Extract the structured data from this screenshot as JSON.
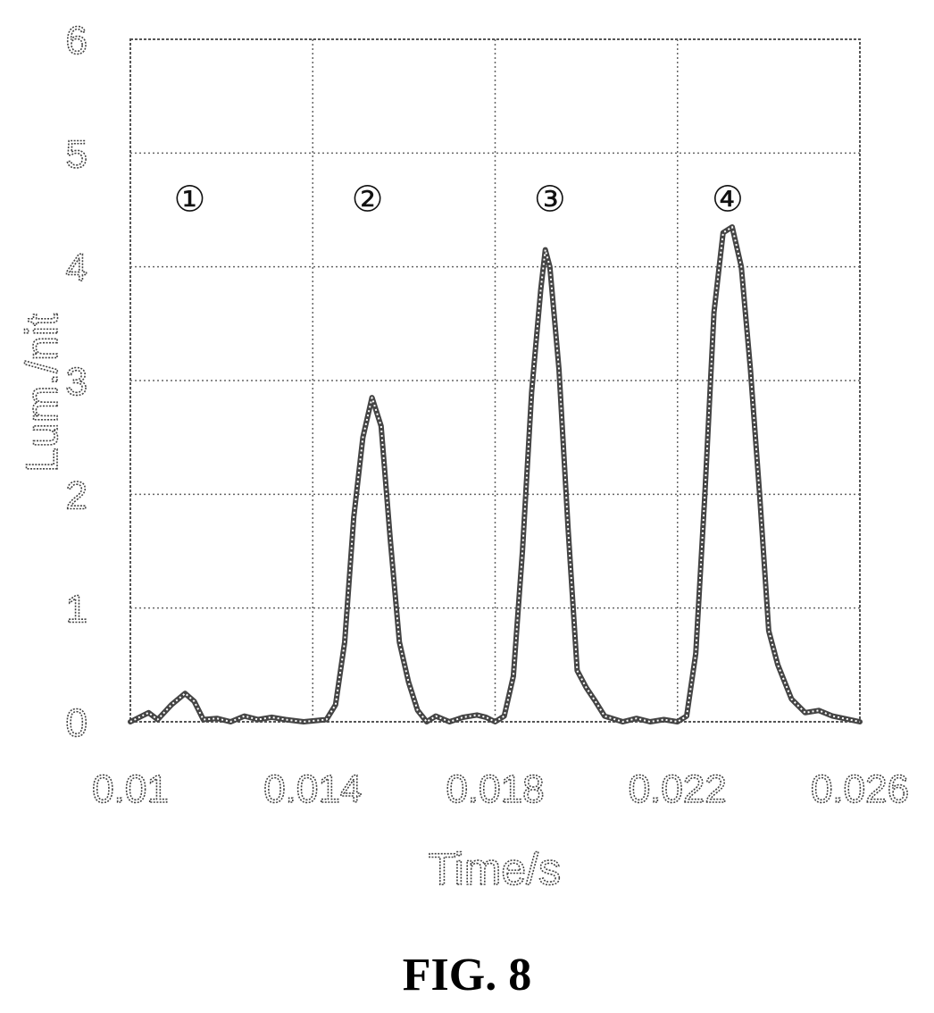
{
  "figure": {
    "caption": "FIG. 8"
  },
  "chart_data": {
    "type": "line",
    "title": "",
    "xlabel": "Time/s",
    "ylabel": "Lum./nit",
    "xlim": [
      0.01,
      0.026
    ],
    "ylim": [
      0,
      6
    ],
    "xticks": [
      "0.01",
      "0.014",
      "0.018",
      "0.022",
      "0.026"
    ],
    "yticks": [
      "0",
      "1",
      "2",
      "3",
      "4",
      "5",
      "6"
    ],
    "grid": true,
    "series": [
      {
        "points": [
          [
            0.01,
            0.0
          ],
          [
            0.0104,
            0.08
          ],
          [
            0.0106,
            0.02
          ],
          [
            0.0109,
            0.15
          ],
          [
            0.0112,
            0.25
          ],
          [
            0.0114,
            0.18
          ],
          [
            0.0116,
            0.02
          ],
          [
            0.0119,
            0.03
          ],
          [
            0.0122,
            0.0
          ],
          [
            0.0125,
            0.05
          ],
          [
            0.0128,
            0.02
          ],
          [
            0.0131,
            0.04
          ],
          [
            0.0134,
            0.02
          ],
          [
            0.0138,
            0.0
          ],
          [
            0.0143,
            0.02
          ],
          [
            0.0145,
            0.15
          ],
          [
            0.0147,
            0.7
          ],
          [
            0.0149,
            1.8
          ],
          [
            0.0151,
            2.5
          ],
          [
            0.0153,
            2.85
          ],
          [
            0.0155,
            2.6
          ],
          [
            0.0157,
            1.6
          ],
          [
            0.0159,
            0.7
          ],
          [
            0.0161,
            0.35
          ],
          [
            0.0163,
            0.1
          ],
          [
            0.0165,
            0.0
          ],
          [
            0.0167,
            0.05
          ],
          [
            0.017,
            0.0
          ],
          [
            0.0173,
            0.04
          ],
          [
            0.0176,
            0.06
          ],
          [
            0.0178,
            0.04
          ],
          [
            0.018,
            0.0
          ],
          [
            0.0182,
            0.05
          ],
          [
            0.0184,
            0.4
          ],
          [
            0.0186,
            1.5
          ],
          [
            0.0188,
            2.9
          ],
          [
            0.019,
            3.8
          ],
          [
            0.0191,
            4.15
          ],
          [
            0.0192,
            4.0
          ],
          [
            0.0194,
            3.1
          ],
          [
            0.0196,
            1.7
          ],
          [
            0.0198,
            0.45
          ],
          [
            0.02,
            0.3
          ],
          [
            0.0202,
            0.18
          ],
          [
            0.0204,
            0.05
          ],
          [
            0.0208,
            0.0
          ],
          [
            0.0211,
            0.03
          ],
          [
            0.0214,
            0.0
          ],
          [
            0.0217,
            0.02
          ],
          [
            0.022,
            0.0
          ],
          [
            0.0222,
            0.05
          ],
          [
            0.0224,
            0.6
          ],
          [
            0.0226,
            2.0
          ],
          [
            0.0228,
            3.6
          ],
          [
            0.023,
            4.3
          ],
          [
            0.0232,
            4.35
          ],
          [
            0.0234,
            4.0
          ],
          [
            0.0236,
            3.1
          ],
          [
            0.0238,
            2.0
          ],
          [
            0.024,
            0.8
          ],
          [
            0.0242,
            0.5
          ],
          [
            0.0245,
            0.2
          ],
          [
            0.0248,
            0.08
          ],
          [
            0.0251,
            0.1
          ],
          [
            0.0254,
            0.05
          ],
          [
            0.026,
            0.0
          ]
        ]
      }
    ],
    "annotations": [
      {
        "text": "①",
        "x": 0.0113,
        "y": 4.6
      },
      {
        "text": "②",
        "x": 0.0152,
        "y": 4.6
      },
      {
        "text": "③",
        "x": 0.0192,
        "y": 4.6
      },
      {
        "text": "④",
        "x": 0.0231,
        "y": 4.6
      }
    ]
  }
}
